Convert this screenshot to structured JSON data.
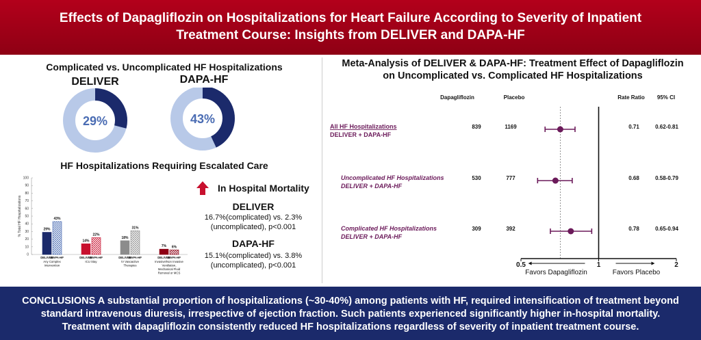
{
  "header": {
    "title_line1": "Effects of Dapagliflozin on Hospitalizations for Heart Failure According to Severity of Inpatient",
    "title_line2": "Treatment Course: Insights from DELIVER and DAPA-HF"
  },
  "left": {
    "donut_title": "Complicated vs. Uncomplicated HF Hospitalizations",
    "donuts": [
      {
        "label": "DELIVER",
        "value_text": "29%",
        "fraction": 0.29,
        "dark": "#1b2a6b",
        "light": "#b8c9e8"
      },
      {
        "label": "DAPA-HF",
        "value_text": "43%",
        "fraction": 0.43,
        "dark": "#1b2a6b",
        "light": "#b8c9e8"
      }
    ],
    "escalated_title": "HF Hospitalizations Requiring Escalated Care"
  },
  "chart_data": {
    "type": "bar",
    "ylabel": "% Total HF Hospitalizations",
    "ylim": [
      0,
      100
    ],
    "yticks": [
      "0",
      "10",
      "20",
      "30",
      "40",
      "50",
      "60",
      "70",
      "80",
      "90",
      "100"
    ],
    "groups": [
      {
        "category": "Any Complex Intervention",
        "bars": [
          {
            "name": "DELIVER",
            "value": 29,
            "label": "29%",
            "color": "#1b2a6b",
            "pattern": false
          },
          {
            "name": "DAPA-HF",
            "value": 43,
            "label": "43%",
            "color": "#4a6cb3",
            "pattern": true
          }
        ]
      },
      {
        "category": "ICU Stay",
        "bars": [
          {
            "name": "DELIVER",
            "value": 14,
            "label": "14%",
            "color": "#c8102e",
            "pattern": false
          },
          {
            "name": "DAPA-HF",
            "value": 22,
            "label": "22%",
            "color": "#c8102e",
            "pattern": true
          }
        ]
      },
      {
        "category": "IV Vasoactive Therapies",
        "bars": [
          {
            "name": "DELIVER",
            "value": 18,
            "label": "18%",
            "color": "#8c8c8c",
            "pattern": false
          },
          {
            "name": "DAPA-HF",
            "value": 31,
            "label": "31%",
            "color": "#8c8c8c",
            "pattern": true
          }
        ]
      },
      {
        "category": "Invasive/Non Invasive Ventilation, Mechanical Fluid Removal or MCS",
        "bars": [
          {
            "name": "DELIVER",
            "value": 7,
            "label": "7%",
            "color": "#8e0014",
            "pattern": false
          },
          {
            "name": "DAPA-HF",
            "value": 6,
            "label": "6%",
            "color": "#8e0014",
            "pattern": true
          }
        ]
      }
    ]
  },
  "mortality": {
    "title": "In Hospital Mortality",
    "deliver_label": "DELIVER",
    "deliver_line1": "16.7%(complicated) vs. 2.3%",
    "deliver_line2": "(uncomplicated), p<0.001",
    "dapa_label": "DAPA-HF",
    "dapa_line1": "15.1%(complicated) vs. 3.8%",
    "dapa_line2": "(uncomplicated), p<0.001"
  },
  "meta": {
    "title_line1": "Meta-Analysis of DELIVER & DAPA-HF: Treatment Effect of Dapagliflozin",
    "title_line2": "on Uncomplicated vs. Complicated HF Hospitalizations",
    "col_dapa": "Dapagliflozin",
    "col_placebo": "Placebo",
    "col_rr": "Rate Ratio",
    "col_ci": "95% CI",
    "rows": [
      {
        "label1": "All HF Hospitalizations",
        "label2": "DELIVER + DAPA-HF",
        "dapa": "839",
        "placebo": "1169",
        "rr": "0.71",
        "ci": "0.62-0.81",
        "est": 0.71,
        "lo": 0.62,
        "hi": 0.81,
        "italic": false
      },
      {
        "label1": "Uncomplicated HF Hospitalizations",
        "label2": "DELIVER + DAPA-HF",
        "dapa": "530",
        "placebo": "777",
        "rr": "0.68",
        "ci": "0.58-0.79",
        "est": 0.68,
        "lo": 0.58,
        "hi": 0.79,
        "italic": true
      },
      {
        "label1": "Complicated HF Hospitalizations",
        "label2": "DELIVER + DAPA-HF",
        "dapa": "309",
        "placebo": "392",
        "rr": "0.78",
        "ci": "0.65-0.94",
        "est": 0.78,
        "lo": 0.65,
        "hi": 0.94,
        "italic": true
      }
    ],
    "axis_ticks": [
      "0.5",
      "1",
      "2"
    ],
    "favors_left": "Favors Dapagliflozin",
    "favors_right": "Favors Placebo",
    "marker_color": "#6b1a5a"
  },
  "footer": {
    "line1": "CONCLUSIONS A substantial proportion of hospitalizations (~30-40%) among patients with HF, required intensification of treatment beyond",
    "line2": "standard intravenous diuresis, irrespective of ejection fraction. Such patients experienced significantly higher in-hospital mortality.",
    "line3": "Treatment with dapagliflozin consistently reduced HF hospitalizations regardless of severity of inpatient treatment course."
  }
}
